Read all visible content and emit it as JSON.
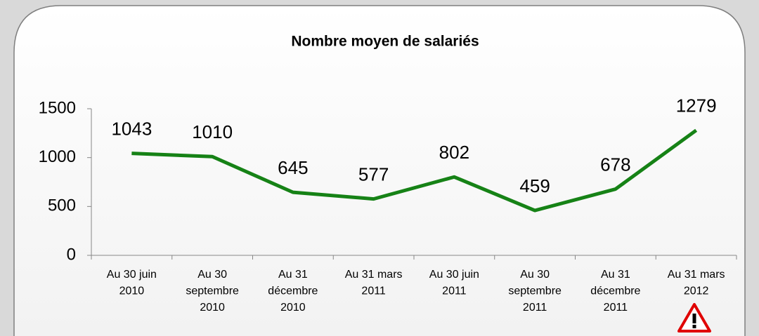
{
  "chart_data": {
    "type": "line",
    "title": "Nombre moyen de salariés",
    "categories": [
      "Au 30 juin\n2010",
      "Au 30\nseptembre\n2010",
      "Au 31\ndécembre\n2010",
      "Au 31 mars\n2011",
      "Au 30 juin\n2011",
      "Au 30\nseptembre\n2011",
      "Au 31\ndécembre\n2011",
      "Au 31 mars\n2012"
    ],
    "series": [
      {
        "name": "Nombre moyen de salariés",
        "color": "#168216",
        "values": [
          1043,
          1010,
          645,
          577,
          802,
          459,
          678,
          1279
        ]
      }
    ],
    "ylim": [
      0,
      1500
    ],
    "yticks": [
      0,
      500,
      1000,
      1500
    ],
    "grid": false
  }
}
